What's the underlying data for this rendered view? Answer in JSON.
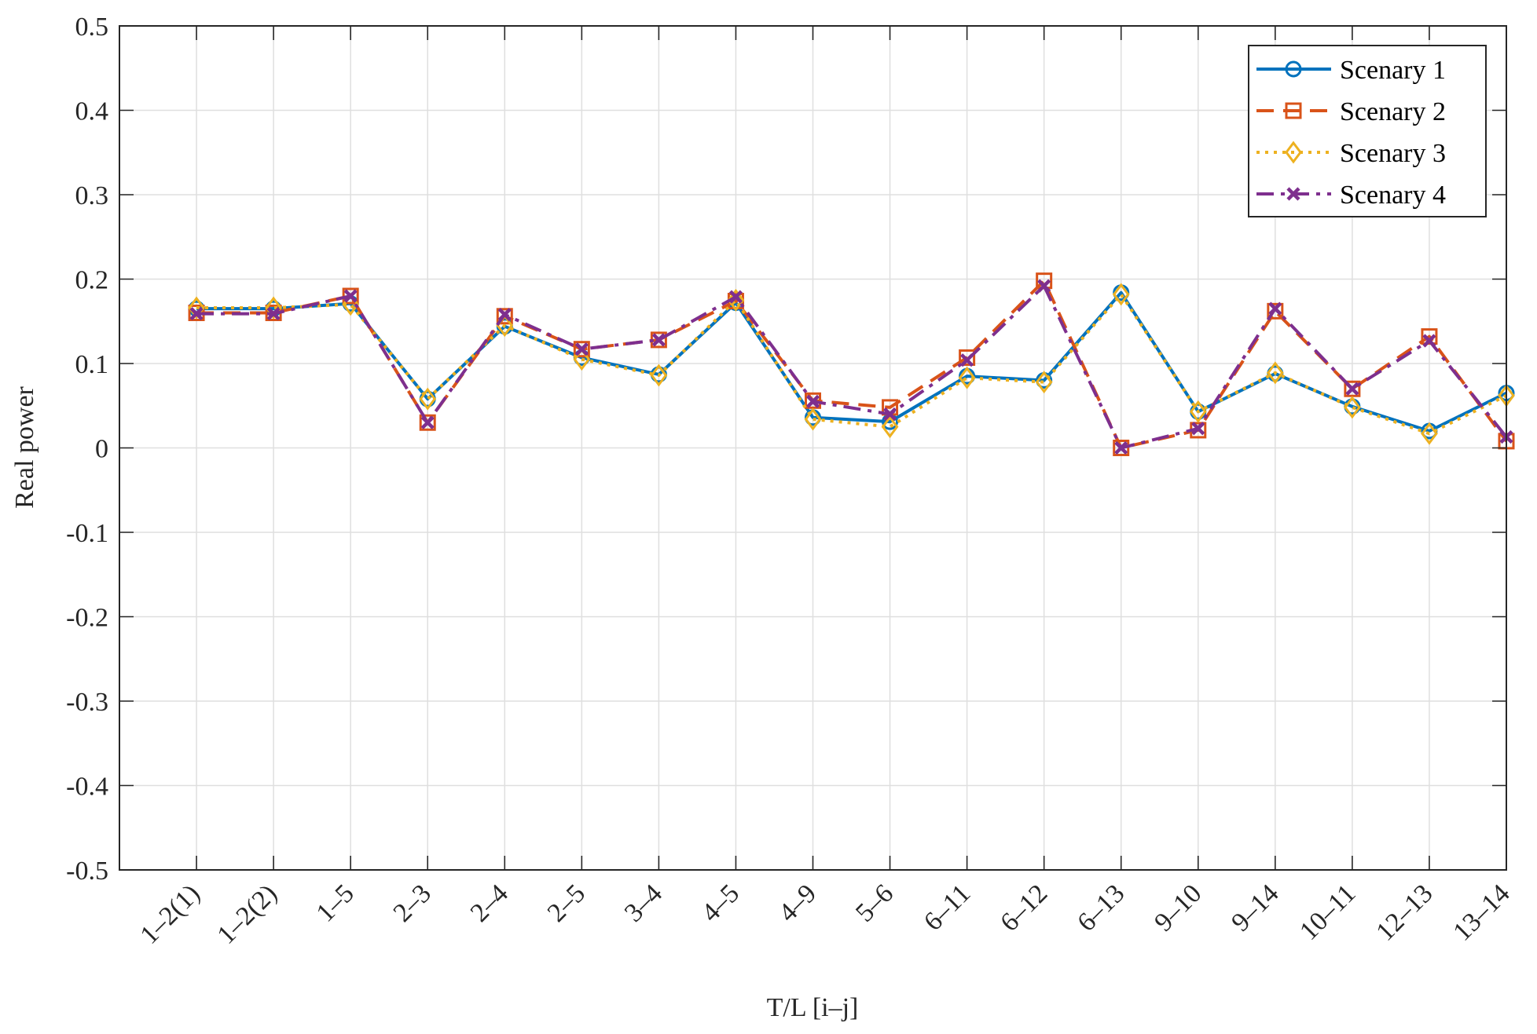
{
  "chart_data": {
    "type": "line",
    "title": "",
    "xlabel": "T/L [i–j]",
    "ylabel": "Real power",
    "ylim": [
      -0.5,
      0.5
    ],
    "yticks": [
      -0.5,
      -0.4,
      -0.3,
      -0.2,
      -0.1,
      0,
      0.1,
      0.2,
      0.3,
      0.4,
      0.5
    ],
    "ytick_labels": [
      "-0.5",
      "-0.4",
      "-0.3",
      "-0.2",
      "-0.1",
      "0",
      "0.1",
      "0.2",
      "0.3",
      "0.4",
      "0.5"
    ],
    "xlim": [
      0,
      18
    ],
    "grid": true,
    "legend_position": "northeast",
    "categories": [
      "1–2(1)",
      "1–2(2)",
      "1–5",
      "2–3",
      "2–4",
      "2–5",
      "3–4",
      "4–5",
      "4–9",
      "5–6",
      "6–11",
      "6–12",
      "6–13",
      "9–10",
      "9–14",
      "10–11",
      "12–13",
      "13–14"
    ],
    "series": [
      {
        "name": "Scenary 1",
        "color": "#0072BD",
        "line_style": "solid",
        "marker": "circle",
        "values": [
          0.165,
          0.165,
          0.171,
          0.058,
          0.144,
          0.107,
          0.087,
          0.172,
          0.036,
          0.031,
          0.085,
          0.08,
          0.184,
          0.043,
          0.088,
          0.049,
          0.02,
          0.065
        ]
      },
      {
        "name": "Scenary 2",
        "color": "#D95319",
        "line_style": "dashed",
        "marker": "square",
        "values": [
          0.16,
          0.16,
          0.18,
          0.03,
          0.156,
          0.117,
          0.128,
          0.174,
          0.056,
          0.048,
          0.107,
          0.198,
          0.0,
          0.021,
          0.162,
          0.07,
          0.132,
          0.008
        ]
      },
      {
        "name": "Scenary 3",
        "color": "#EDB120",
        "line_style": "dotted",
        "marker": "diamond",
        "values": [
          0.166,
          0.166,
          0.17,
          0.058,
          0.145,
          0.105,
          0.086,
          0.175,
          0.034,
          0.025,
          0.083,
          0.078,
          0.182,
          0.043,
          0.089,
          0.048,
          0.017,
          0.062
        ]
      },
      {
        "name": "Scenary 4",
        "color": "#7E2F8E",
        "line_style": "dashdot",
        "marker": "x",
        "values": [
          0.159,
          0.159,
          0.18,
          0.03,
          0.158,
          0.117,
          0.128,
          0.179,
          0.055,
          0.04,
          0.104,
          0.192,
          0.0,
          0.023,
          0.165,
          0.07,
          0.127,
          0.013
        ]
      }
    ]
  },
  "colors": {
    "axis": "#262626",
    "grid": "#DFDFDF",
    "background": "#FFFFFF"
  }
}
